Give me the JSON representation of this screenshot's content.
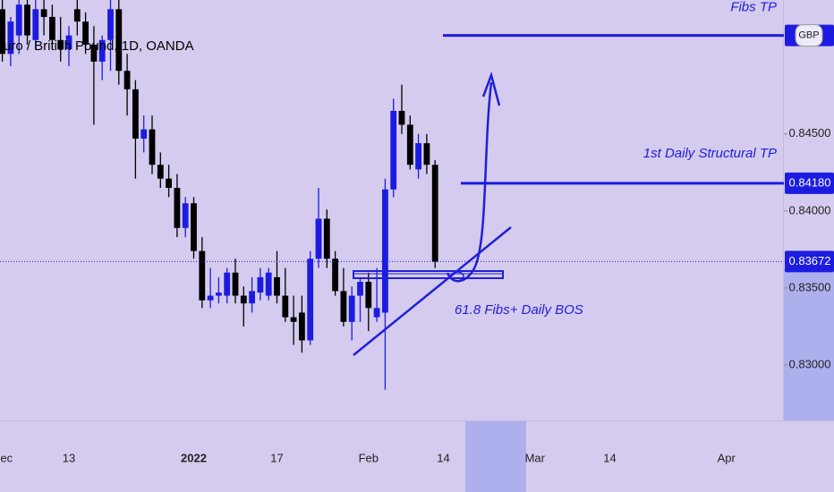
{
  "chart_data": {
    "type": "candlestick",
    "title": "uro / British Pound, 1D, OANDA",
    "categories": [
      "Dec",
      null,
      null,
      null,
      null,
      null,
      null,
      null,
      "13",
      null,
      null,
      null,
      null,
      null,
      null,
      null,
      null,
      null,
      null,
      null,
      null,
      null,
      null,
      "2022",
      null,
      null,
      null,
      null,
      null,
      null,
      null,
      null,
      null,
      "17",
      null,
      null,
      null,
      null,
      null,
      null,
      null,
      null,
      null,
      null,
      "Feb",
      null,
      null,
      null,
      null,
      null,
      null,
      null,
      null,
      "14",
      null,
      null,
      null,
      null,
      null,
      null,
      null,
      null,
      null,
      null,
      "Mar",
      null,
      null,
      null,
      null,
      null,
      null,
      null,
      null,
      "14",
      null,
      null,
      null,
      null,
      null,
      null,
      null,
      null,
      null,
      null,
      null,
      null,
      null,
      "Apr",
      null,
      null,
      null,
      null,
      null,
      null
    ],
    "open": [
      0.8531,
      0.8502,
      0.8514,
      0.8534,
      0.8511,
      0.8531,
      0.8526,
      0.8511,
      0.8505,
      0.8531,
      0.8523,
      0.8508,
      0.8497,
      0.8511,
      0.8531,
      0.8491,
      0.8479,
      0.8447,
      0.8453,
      0.843,
      0.8421,
      0.8415,
      0.8389,
      0.8405,
      0.8374,
      0.8342,
      0.8345,
      0.8345,
      0.836,
      0.8345,
      0.834,
      0.8347,
      0.8345,
      0.8357,
      0.8345,
      0.8331,
      0.8334,
      0.8316,
      0.8369,
      0.8395,
      0.8369,
      0.8348,
      0.8328,
      0.8345,
      0.8354,
      0.8331,
      0.8334,
      0.8414,
      0.8465,
      0.8456,
      0.8427,
      0.8444,
      0.843,
      null,
      null,
      null,
      null,
      null,
      null,
      null,
      null,
      null,
      null,
      null,
      null,
      null,
      null,
      null,
      null,
      null,
      null,
      null,
      null,
      null,
      null,
      null,
      null,
      null,
      null,
      null,
      null,
      null,
      null,
      null,
      null,
      null,
      null,
      null,
      null,
      null,
      null,
      null,
      null,
      null
    ],
    "high": [
      0.8537,
      0.8526,
      0.8537,
      0.8537,
      0.8537,
      0.8537,
      0.8534,
      0.8526,
      0.852,
      0.8537,
      0.8529,
      0.852,
      0.8514,
      0.8537,
      0.8537,
      0.8502,
      0.8485,
      0.8462,
      0.8462,
      0.8438,
      0.843,
      0.8424,
      0.8409,
      0.8409,
      0.8383,
      0.8363,
      0.8357,
      0.8363,
      0.8369,
      0.8351,
      0.8357,
      0.8363,
      0.8363,
      0.8374,
      0.8363,
      0.8345,
      0.8345,
      0.8374,
      0.8415,
      0.8401,
      0.8374,
      0.8363,
      0.8351,
      0.8357,
      0.836,
      0.8363,
      0.8421,
      0.8473,
      0.8482,
      0.8462,
      0.845,
      0.845,
      0.8433,
      null,
      null,
      null,
      null,
      null,
      null,
      null,
      null,
      null,
      null,
      null,
      null,
      null,
      null,
      null,
      null,
      null,
      null,
      null,
      null,
      null,
      null,
      null,
      null,
      null,
      null,
      null,
      null,
      null,
      null,
      null,
      null,
      null,
      null,
      null,
      null,
      null,
      null,
      null,
      null,
      null
    ],
    "low": [
      0.8497,
      0.8494,
      0.8502,
      0.8508,
      0.8505,
      0.8514,
      0.8505,
      0.8497,
      0.8494,
      0.8514,
      0.8502,
      0.8456,
      0.8485,
      0.8491,
      0.8482,
      0.8462,
      0.8421,
      0.8438,
      0.8424,
      0.8415,
      0.8409,
      0.8383,
      0.8383,
      0.8369,
      0.8337,
      0.8337,
      0.834,
      0.834,
      0.834,
      0.8325,
      0.8334,
      0.8342,
      0.8342,
      0.834,
      0.8328,
      0.8313,
      0.8308,
      0.8313,
      0.8363,
      0.8363,
      0.8345,
      0.8325,
      0.8316,
      0.8328,
      0.8322,
      0.8328,
      0.8284,
      0.8409,
      0.845,
      0.8427,
      0.8421,
      0.8424,
      0.8363,
      null,
      null,
      null,
      null,
      null,
      null,
      null,
      null,
      null,
      null,
      null,
      null,
      null,
      null,
      null,
      null,
      null,
      null,
      null,
      null,
      null,
      null,
      null,
      null,
      null,
      null,
      null,
      null,
      null,
      null,
      null,
      null,
      null,
      null,
      null,
      null,
      null,
      null,
      null,
      null,
      null
    ],
    "close": [
      0.8502,
      0.8523,
      0.8534,
      0.8514,
      0.8531,
      0.8526,
      0.8511,
      0.8505,
      0.8514,
      0.8523,
      0.8508,
      0.8497,
      0.8511,
      0.8531,
      0.8491,
      0.8479,
      0.8447,
      0.8453,
      0.843,
      0.8421,
      0.8415,
      0.8389,
      0.8405,
      0.8374,
      0.8342,
      0.8345,
      0.8347,
      0.836,
      0.8345,
      0.834,
      0.8348,
      0.8357,
      0.836,
      0.8345,
      0.8331,
      0.8328,
      0.8316,
      0.8369,
      0.8395,
      0.8369,
      0.8348,
      0.8328,
      0.8345,
      0.8354,
      0.8337,
      0.8337,
      0.8414,
      0.8465,
      0.8456,
      0.843,
      0.8444,
      0.843,
      0.8367,
      null,
      null,
      null,
      null,
      null,
      null,
      null,
      null,
      null,
      null,
      null,
      null,
      null,
      null,
      null,
      null,
      null,
      null,
      null,
      null,
      null,
      null,
      null,
      null,
      null,
      null,
      null,
      null,
      null,
      null,
      null,
      null,
      null,
      null,
      null,
      null,
      null,
      null,
      null,
      null,
      null
    ],
    "up_color": "#1c1ce0",
    "down_color": "#000000",
    "ylim": [
      0.8264,
      0.8537
    ],
    "yticks": [
      {
        "value": 0.83,
        "label": "0.83000"
      },
      {
        "value": 0.835,
        "label": "0.83500"
      },
      {
        "value": 0.84,
        "label": "0.84000"
      },
      {
        "value": 0.845,
        "label": "0.84500"
      }
    ],
    "levels": [
      {
        "value": 0.8514,
        "text": "Fibs TP"
      },
      {
        "value": 0.8418,
        "text": "1st Daily Structural TP",
        "label": "0.84180"
      }
    ],
    "currency": "GBP",
    "last_price": {
      "value": 0.83672,
      "label": "0.83672"
    },
    "annotation": "61.8 Fibs+ Daily BOS"
  }
}
